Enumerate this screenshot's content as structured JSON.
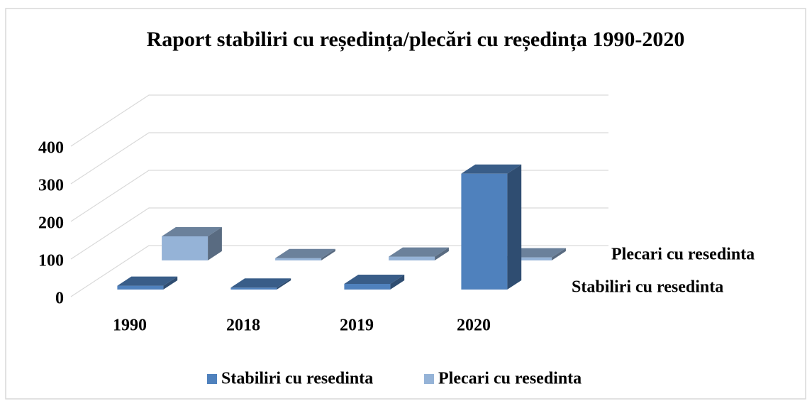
{
  "chart_data": {
    "type": "bar3d",
    "title": "Raport stabiliri cu reședința/plecări cu reședința 1990-2020",
    "categories": [
      "1990",
      "2018",
      "2019",
      "2020"
    ],
    "series": [
      {
        "name": "Stabiliri cu resedinta",
        "color": "#4f81bd",
        "values": [
          10,
          5,
          15,
          308
        ]
      },
      {
        "name": "Plecari cu resedinta",
        "color": "#95b3d7",
        "values": [
          64,
          6,
          10,
          8
        ]
      }
    ],
    "ylim": [
      0,
      400
    ],
    "yticks": [
      0,
      100,
      200,
      300,
      400
    ],
    "grid": true,
    "legend": "bottom"
  }
}
